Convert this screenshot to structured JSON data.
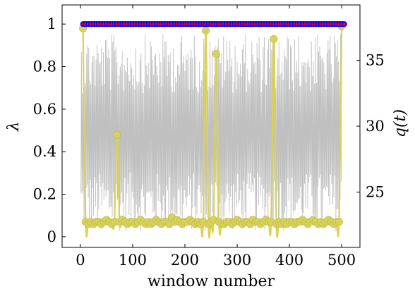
{
  "chart_data": {
    "type": "line",
    "title": "",
    "xlabel": "window number",
    "ylabel": "λ",
    "y2label": "q(t)",
    "xlim": [
      -35,
      535
    ],
    "ylim": [
      -0.05,
      1.09
    ],
    "y2lim": [
      20.8,
      39.2
    ],
    "xticks": [
      0,
      100,
      200,
      300,
      400,
      500
    ],
    "xtick_labels": [
      "0",
      "100",
      "200",
      "300",
      "400",
      "500"
    ],
    "yticks": [
      0,
      0.2,
      0.4,
      0.6,
      0.8,
      1
    ],
    "ytick_labels": [
      "0",
      "0.2",
      "0.4",
      "0.6",
      "0.8",
      "1"
    ],
    "y2ticks": [
      25,
      30,
      35
    ],
    "y2tick_labels": [
      "25",
      "30",
      "35"
    ],
    "grid": false,
    "legend": "none",
    "series": [
      {
        "axis": "left",
        "color": "#ff0000",
        "marker": "circle",
        "marker_edge": "#0000ff",
        "x": [
          5,
          505
        ],
        "constant_value": 1.0
      },
      {
        "axis": "left",
        "color": "#d9d259",
        "marker": "circle",
        "x": [
          5,
          10,
          15,
          20,
          25,
          30,
          35,
          40,
          45,
          50,
          55,
          60,
          65,
          70,
          75,
          80,
          85,
          90,
          95,
          100,
          105,
          110,
          115,
          120,
          125,
          130,
          135,
          140,
          145,
          150,
          155,
          160,
          165,
          170,
          175,
          180,
          185,
          190,
          195,
          200,
          205,
          210,
          215,
          220,
          225,
          230,
          235,
          240,
          245,
          250,
          255,
          260,
          265,
          270,
          275,
          280,
          285,
          290,
          295,
          300,
          305,
          310,
          315,
          320,
          325,
          330,
          335,
          340,
          345,
          350,
          355,
          360,
          365,
          370,
          375,
          380,
          385,
          390,
          395,
          400,
          405,
          410,
          415,
          420,
          425,
          430,
          435,
          440,
          445,
          450,
          455,
          460,
          465,
          470,
          475,
          480,
          485,
          490,
          495,
          500
        ],
        "values": [
          0.98,
          0.07,
          0.06,
          0.07,
          0.06,
          0.07,
          0.07,
          0.06,
          0.07,
          0.08,
          0.07,
          0.06,
          0.07,
          0.48,
          0.07,
          0.08,
          0.07,
          0.06,
          0.07,
          0.07,
          0.06,
          0.07,
          0.08,
          0.07,
          0.06,
          0.07,
          0.06,
          0.07,
          0.08,
          0.07,
          0.06,
          0.07,
          0.07,
          0.06,
          0.09,
          0.07,
          0.08,
          0.07,
          0.06,
          0.07,
          0.07,
          0.08,
          0.07,
          0.06,
          0.07,
          0.06,
          0.07,
          0.97,
          0.06,
          0.07,
          0.08,
          0.86,
          0.07,
          0.06,
          0.06,
          0.07,
          0.07,
          0.06,
          0.07,
          0.08,
          0.07,
          0.06,
          0.07,
          0.07,
          0.06,
          0.08,
          0.07,
          0.07,
          0.06,
          0.07,
          0.08,
          0.07,
          0.07,
          0.93,
          0.06,
          0.07,
          0.06,
          0.07,
          0.06,
          0.07,
          0.07,
          0.06,
          0.07,
          0.07,
          0.08,
          0.07,
          0.06,
          0.07,
          0.08,
          0.07,
          0.06,
          0.07,
          0.06,
          0.07,
          0.08,
          0.07,
          0.06,
          0.07,
          0.07,
          0.99
        ]
      },
      {
        "axis": "right",
        "color": "#c0c0c0",
        "marker": "none",
        "points": 500,
        "range": [
          22,
          37
        ]
      }
    ]
  }
}
